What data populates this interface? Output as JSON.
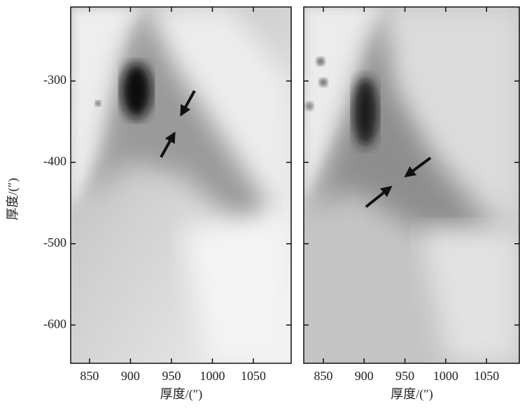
{
  "chart_data": [
    {
      "type": "image",
      "xlabel": "厚度/(″)",
      "ylabel": "厚度/(″)",
      "xlim": [
        827,
        1097
      ],
      "ylim": [
        -647,
        -209
      ],
      "xticks": [
        850,
        900,
        950,
        1000,
        1050
      ],
      "yticks": [
        -300,
        -400,
        -500,
        -600
      ]
    },
    {
      "type": "image",
      "xlabel": "厚度/(″)",
      "xlim": [
        826,
        1091
      ],
      "ylim": [
        -647,
        -209
      ],
      "xticks": [
        850,
        900,
        950,
        1000,
        1050
      ],
      "yticks": [
        -300,
        -400,
        -500,
        -600
      ]
    }
  ]
}
